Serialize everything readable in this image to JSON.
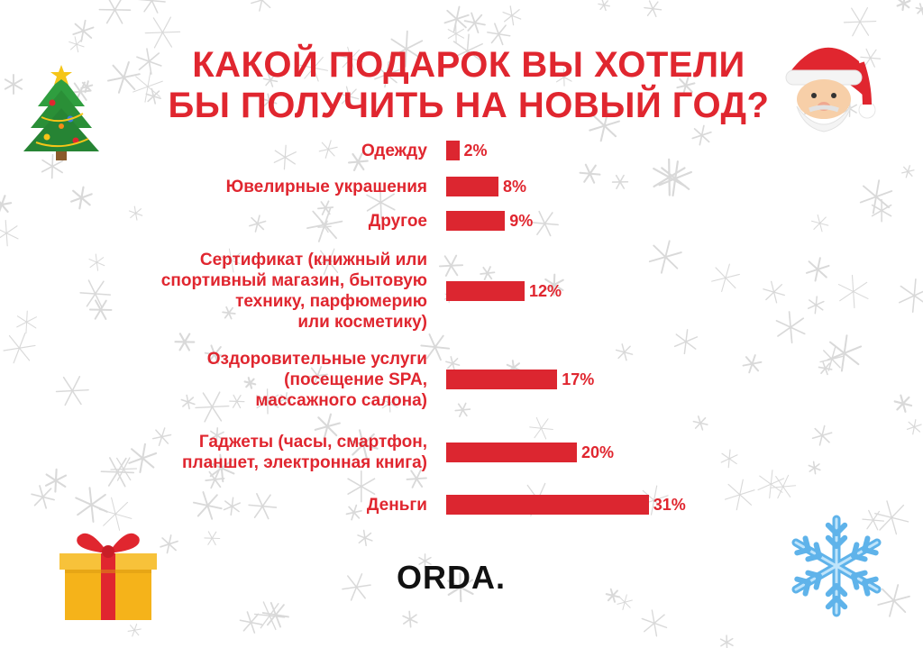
{
  "header": {
    "title_line1": "КАКОЙ ПОДАРОК ВЫ ХОТЕЛИ",
    "title_line2": "БЫ ПОЛУЧИТЬ НА НОВЫЙ ГОД?"
  },
  "brand": {
    "logo_text": "ORDA."
  },
  "decorations": {
    "icons": [
      "christmas-tree-icon",
      "santa-claus-icon",
      "gift-box-icon",
      "snowflake-icon"
    ],
    "background": "snowflakes"
  },
  "colors": {
    "accent": "#e0262f",
    "bar": "#dc2630",
    "logo": "#111111",
    "snow": "#d9d9d9"
  },
  "chart_data": {
    "type": "bar",
    "orientation": "horizontal",
    "categories": [
      [
        "Одежду"
      ],
      [
        "Ювелирные украшения"
      ],
      [
        "Другое"
      ],
      [
        "Сертификат (книжный или",
        "спортивный магазин, бытовую",
        "технику, парфюмерию",
        "или косметику)"
      ],
      [
        "Оздоровительные услуги",
        "(посещение SPA,",
        "массажного салона)"
      ],
      [
        "Гаджеты (часы, смартфон,",
        "планшет, электронная книга)"
      ],
      [
        "Деньги"
      ]
    ],
    "values": [
      2,
      8,
      9,
      12,
      17,
      20,
      31
    ],
    "value_labels": [
      "2%",
      "8%",
      "9%",
      "12%",
      "17%",
      "20%",
      "31%"
    ],
    "unit": "%",
    "grid": false,
    "legend": "none"
  }
}
